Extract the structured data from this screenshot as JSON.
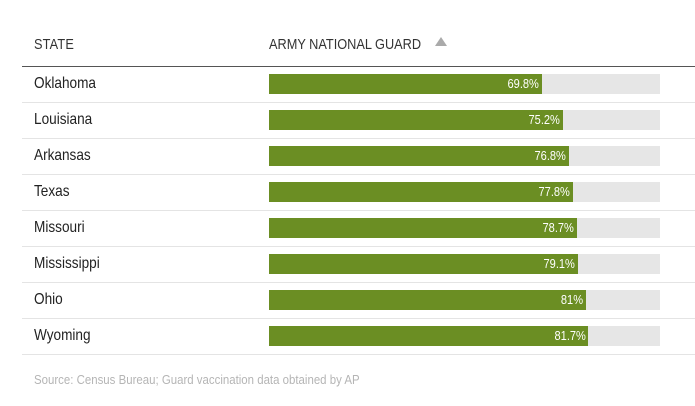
{
  "header": {
    "state_label": "STATE",
    "guard_label": "ARMY NATIONAL GUARD",
    "sort_icon": "triangle-up-icon"
  },
  "colors": {
    "bar": "#6b8e23",
    "track": "#e6e6e6"
  },
  "chart_data": {
    "type": "bar",
    "orientation": "horizontal",
    "categories": [
      "Oklahoma",
      "Louisiana",
      "Arkansas",
      "Texas",
      "Missouri",
      "Mississippi",
      "Ohio",
      "Wyoming"
    ],
    "values": [
      69.8,
      75.2,
      76.8,
      77.8,
      78.7,
      79.1,
      81,
      81.7
    ],
    "value_labels": [
      "69.8%",
      "75.2%",
      "76.8%",
      "77.8%",
      "78.7%",
      "79.1%",
      "81%",
      "81.7%"
    ],
    "xlim": [
      0,
      100
    ]
  },
  "footer": {
    "source": "Source: Census Bureau; Guard vaccination data obtained by AP"
  }
}
